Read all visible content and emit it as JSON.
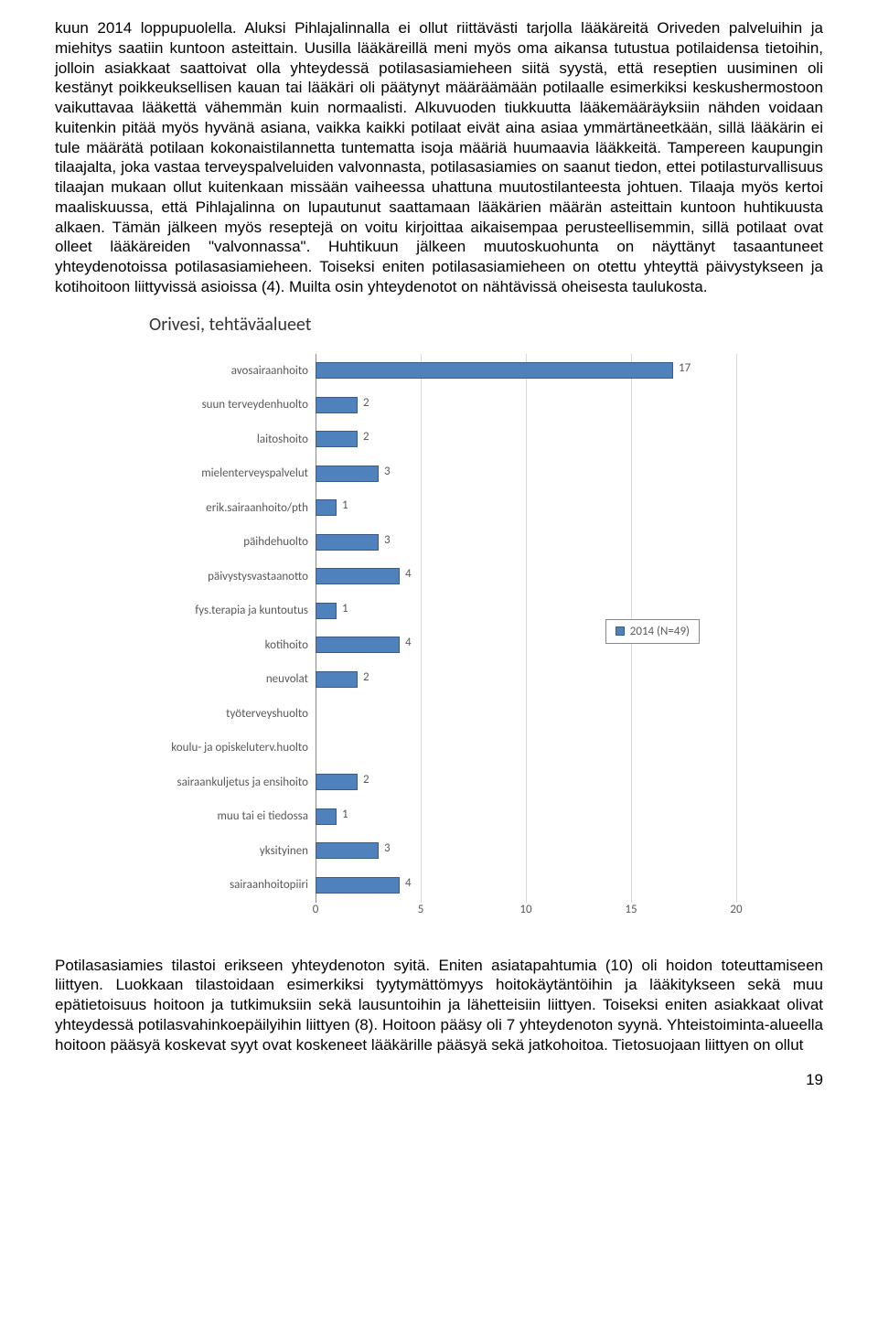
{
  "paragraphs": {
    "p1": "kuun 2014 loppupuolella. Aluksi Pihlajalinnalla ei ollut riittävästi tarjolla lääkäreitä Oriveden palveluihin ja miehitys saatiin kuntoon asteittain. Uusilla lääkäreillä meni myös oma aikansa tutustua potilaidensa tietoihin, jolloin asiakkaat saattoivat olla yhteydessä potilasasiamieheen siitä syystä, että reseptien uusiminen oli kestänyt poikkeuksellisen kauan tai lääkäri oli päätynyt määräämään potilaalle esimerkiksi keskushermostoon vaikuttavaa lääkettä vähemmän kuin normaalisti. Alkuvuoden tiukkuutta lääkemääräyksiin nähden voidaan kuitenkin pitää myös hyvänä asiana, vaikka kaikki potilaat eivät aina asiaa ymmärtäneetkään, sillä lääkärin ei tule määrätä potilaan kokonaistilannetta tuntematta isoja määriä huumaavia lääkkeitä. Tampereen kaupungin tilaajalta, joka vastaa terveyspalveluiden valvonnasta, potilasasiamies on saanut tiedon, ettei potilasturvallisuus tilaajan mukaan ollut kuitenkaan missään vaiheessa uhattuna muutostilanteesta johtuen. Tilaaja myös kertoi maaliskuussa, että Pihlajalinna on lupautunut saattamaan lääkärien määrän asteittain kuntoon huhtikuusta alkaen. Tämän jälkeen myös reseptejä on voitu kirjoittaa aikaisempaa perusteellisemmin, sillä potilaat ovat olleet lääkäreiden \"valvonnassa\". Huhtikuun jälkeen muutoskuohunta on näyttänyt tasaantuneet yhteydenotoissa potilasasiamieheen. Toiseksi eniten potilasasiamieheen on otettu yhteyttä päivystykseen ja kotihoitoon liittyvissä asioissa (4). Muilta osin yhteydenotot on nähtävissä oheisesta taulukosta.",
    "p2": "Potilasasiamies tilastoi erikseen yhteydenoton syitä. Eniten asiatapahtumia (10) oli hoidon toteuttamiseen liittyen. Luokkaan tilastoidaan esimerkiksi tyytymättömyys hoitokäytäntöihin ja lääkitykseen sekä muu epätietoisuus hoitoon ja tutkimuksiin sekä lausuntoihin ja lähetteisiin liittyen. Toiseksi eniten asiakkaat olivat yhteydessä potilasvahinkoepäilyihin liittyen (8). Hoitoon pääsy oli 7 yhteydenoton syynä. Yhteistoiminta-alueella hoitoon pääsyä koskevat syyt ovat koskeneet lääkärille pääsyä sekä jatkohoitoa. Tietosuojaan liittyen on ollut"
  },
  "page_number": "19",
  "chart": {
    "type": "bar",
    "title": "Orivesi, tehtäväalueet",
    "title_fontsize": 20,
    "categories": [
      "avosairaanhoito",
      "suun terveydenhuolto",
      "laitoshoito",
      "mielenterveyspalvelut",
      "erik.sairaanhoito/pth",
      "päihdehuolto",
      "päivystysvastaanotto",
      "fys.terapia ja kuntoutus",
      "kotihoito",
      "neuvolat",
      "työterveyshuolto",
      "koulu- ja opiskeluterv.huolto",
      "sairaankuljetus ja ensihoito",
      "muu tai ei tiedossa",
      "yksityinen",
      "sairaanhoitopiiri"
    ],
    "values": [
      17,
      2,
      2,
      3,
      1,
      3,
      4,
      1,
      4,
      2,
      0,
      0,
      2,
      1,
      3,
      4
    ],
    "bar_color": "#4f81bd",
    "bar_border_color": "#385d8a",
    "xlim": [
      0,
      20
    ],
    "xtick_step": 5,
    "xticks": [
      0,
      5,
      10,
      15,
      20
    ],
    "background_color": "#ffffff",
    "grid_color": "#d9d9d9",
    "axis_color": "#888888",
    "category_fontsize": 13,
    "tick_fontsize": 13,
    "legend": {
      "label": "2014 (N=49)",
      "swatch_color": "#4f81bd"
    }
  }
}
